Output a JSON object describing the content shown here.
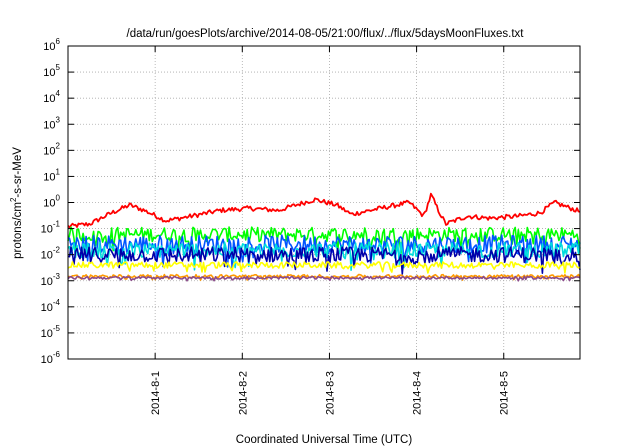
{
  "chart_data": {
    "type": "line",
    "title": "/data/run/goesPlots/archive/2014-08-05/21:00/flux/../flux/5daysMoonFluxes.txt",
    "xlabel": "Coordinated Universal Time (UTC)",
    "ylabel": {
      "prefix": "protons/cm",
      "superscript": "2",
      "suffix": "-s-sr-MeV"
    },
    "yscale": "log",
    "ylim": [
      1e-06,
      1000000.0
    ],
    "y_ticks": [
      {
        "base": "10",
        "exp": "-6",
        "value": 1e-06
      },
      {
        "base": "10",
        "exp": "-5",
        "value": 1e-05
      },
      {
        "base": "10",
        "exp": "-4",
        "value": 0.0001
      },
      {
        "base": "10",
        "exp": "-3",
        "value": 0.001
      },
      {
        "base": "10",
        "exp": "-2",
        "value": 0.01
      },
      {
        "base": "10",
        "exp": "-1",
        "value": 0.1
      },
      {
        "base": "10",
        "exp": "0",
        "value": 1
      },
      {
        "base": "10",
        "exp": "1",
        "value": 10
      },
      {
        "base": "10",
        "exp": "2",
        "value": 100
      },
      {
        "base": "10",
        "exp": "3",
        "value": 1000
      },
      {
        "base": "10",
        "exp": "4",
        "value": 10000
      },
      {
        "base": "10",
        "exp": "5",
        "value": 100000
      },
      {
        "base": "10",
        "exp": "6",
        "value": 1000000
      }
    ],
    "xlim": [
      "2014-07-31T00:00",
      "2014-08-05T21:00"
    ],
    "x_ticks": [
      {
        "label": "2014-8-1",
        "value": "2014-08-01T00:00"
      },
      {
        "label": "2014-8-2",
        "value": "2014-08-02T00:00"
      },
      {
        "label": "2014-8-3",
        "value": "2014-08-03T00:00"
      },
      {
        "label": "2014-8-4",
        "value": "2014-08-04T00:00"
      },
      {
        "label": "2014-8-5",
        "value": "2014-08-05T00:00"
      }
    ],
    "grid": true,
    "legend": "none",
    "series": [
      {
        "color": "#ff0000",
        "keypoints": [
          [
            "2014-07-31T00:00",
            0.12
          ],
          [
            "2014-07-31T06:00",
            0.15
          ],
          [
            "2014-07-31T12:00",
            0.4
          ],
          [
            "2014-07-31T17:00",
            0.8
          ],
          [
            "2014-07-31T21:00",
            0.5
          ],
          [
            "2014-08-01T03:00",
            0.2
          ],
          [
            "2014-08-01T10:00",
            0.3
          ],
          [
            "2014-08-01T18:00",
            0.5
          ],
          [
            "2014-08-02T02:00",
            0.6
          ],
          [
            "2014-08-02T10:00",
            0.5
          ],
          [
            "2014-08-02T16:00",
            0.9
          ],
          [
            "2014-08-02T20:00",
            1.3
          ],
          [
            "2014-08-03T02:00",
            0.8
          ],
          [
            "2014-08-03T06:00",
            0.35
          ],
          [
            "2014-08-03T14:00",
            0.6
          ],
          [
            "2014-08-03T22:00",
            1.0
          ],
          [
            "2014-08-04T02:00",
            0.3
          ],
          [
            "2014-08-04T04:00",
            2.0
          ],
          [
            "2014-08-04T06:00",
            0.5
          ],
          [
            "2014-08-04T08:00",
            0.15
          ],
          [
            "2014-08-04T14:00",
            0.3
          ],
          [
            "2014-08-04T20:00",
            0.25
          ],
          [
            "2014-08-05T04:00",
            0.3
          ],
          [
            "2014-08-05T10:00",
            0.4
          ],
          [
            "2014-08-05T14:00",
            1.0
          ],
          [
            "2014-08-05T21:00",
            0.45
          ]
        ]
      },
      {
        "color": "#00ff00",
        "base": 0.06
      },
      {
        "color": "#0055ff",
        "base": 0.025
      },
      {
        "color": "#00dddd",
        "base": 0.015
      },
      {
        "color": "#0000aa",
        "base": 0.01
      },
      {
        "color": "#ffff00",
        "base": 0.004
      },
      {
        "color": "#ff9900",
        "base": 0.0015
      },
      {
        "color": "#8a4a8a",
        "base": 0.0013
      }
    ]
  }
}
